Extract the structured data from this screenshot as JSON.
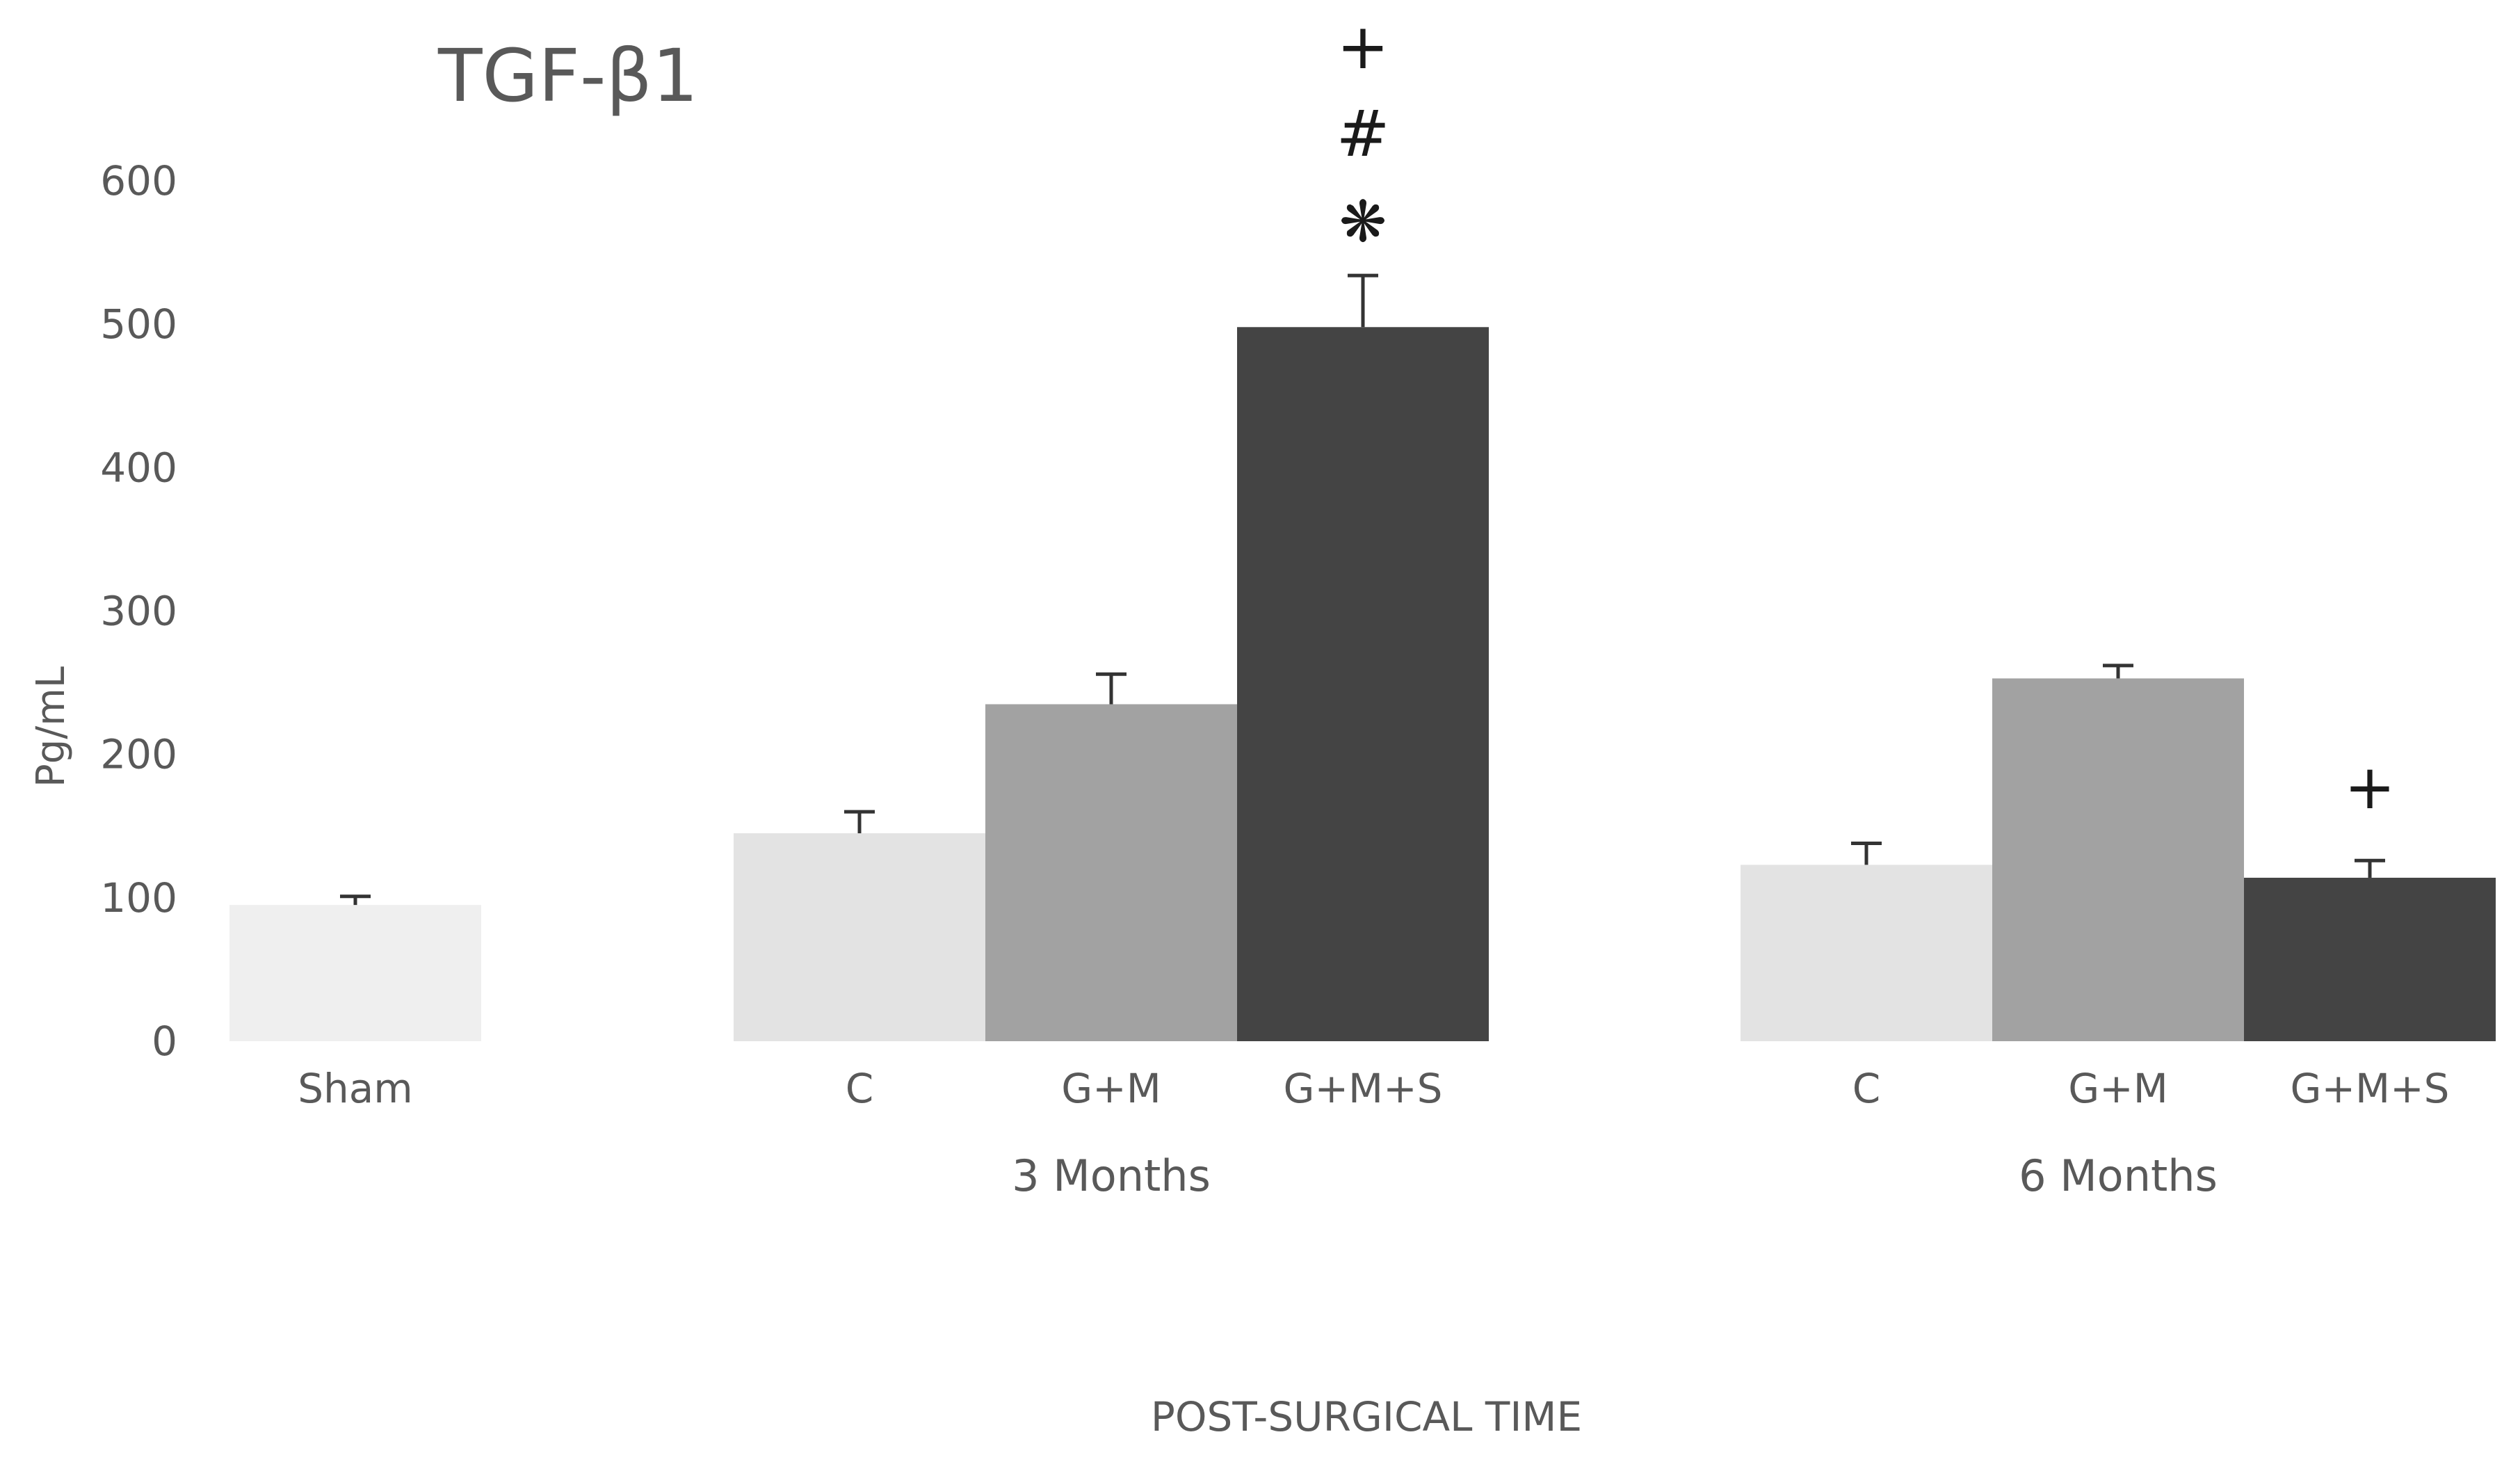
{
  "chart_data": {
    "type": "bar",
    "title": "TGF-β1",
    "ylabel": "Pg/mL",
    "xlabel": "POST-SURGICAL TIME",
    "ylim": [
      0,
      600
    ],
    "yticks": [
      0,
      100,
      200,
      300,
      400,
      500,
      600
    ],
    "grid": false,
    "groups": [
      {
        "name": "",
        "bars": [
          {
            "category": "Sham",
            "value": 95,
            "error": 6,
            "color": "#efefef",
            "annotation": []
          }
        ]
      },
      {
        "name": "3 Months",
        "bars": [
          {
            "category": "C",
            "value": 145,
            "error": 15,
            "color": "#e3e3e3",
            "annotation": []
          },
          {
            "category": "G+M",
            "value": 235,
            "error": 21,
            "color": "#a2a2a2",
            "annotation": []
          },
          {
            "category": "G+M+S",
            "value": 498,
            "error": 36,
            "color": "#444444",
            "annotation": [
              "+",
              "#",
              "❋"
            ]
          }
        ]
      },
      {
        "name": "6 Months",
        "bars": [
          {
            "category": "C",
            "value": 123,
            "error": 15,
            "color": "#e3e3e3",
            "annotation": []
          },
          {
            "category": "G+M",
            "value": 253,
            "error": 9,
            "color": "#a2a2a2",
            "annotation": []
          },
          {
            "category": "G+M+S",
            "value": 114,
            "error": 12,
            "color": "#444444",
            "annotation": [
              "+"
            ]
          }
        ]
      }
    ]
  }
}
